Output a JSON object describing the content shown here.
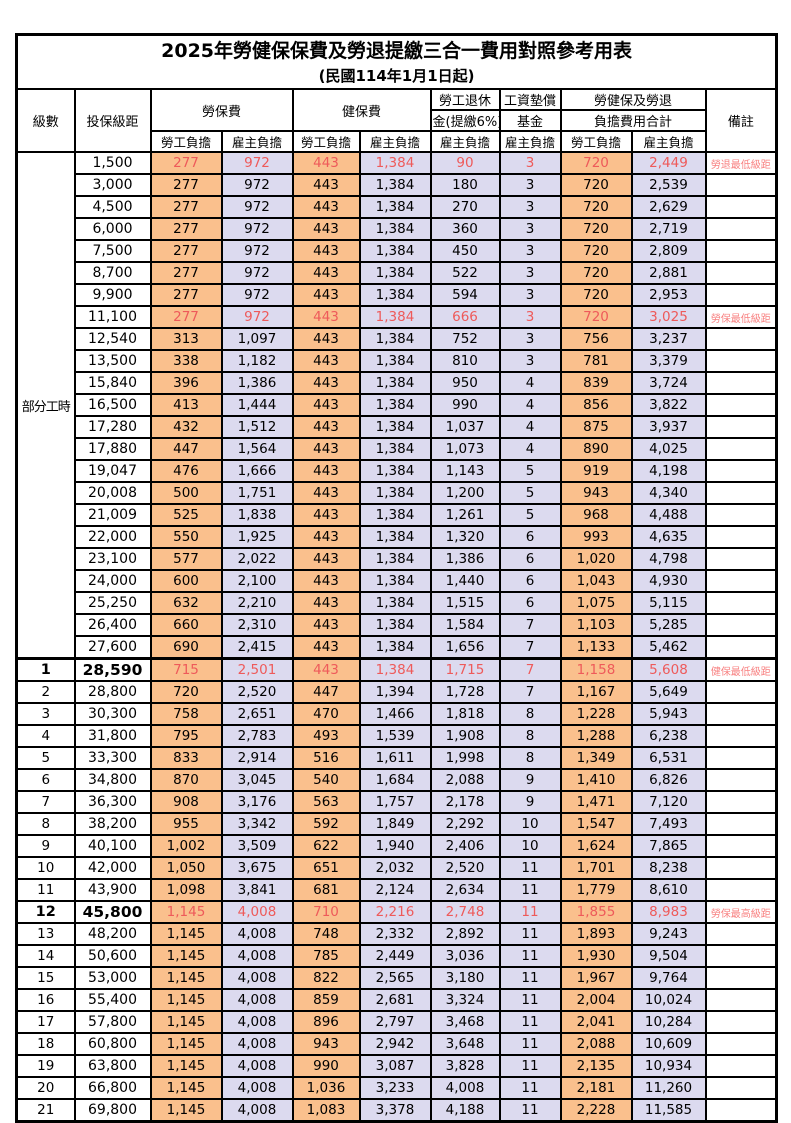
{
  "title": "2025年勞健保保費及勞退提繳三合一費用對照參考用表",
  "subtitle": "(民國114年1月1日起)",
  "columns": {
    "level": "級數",
    "bracket": "投保級距",
    "labor": "勞保費",
    "health": "健保費",
    "pension_1": "勞工退休",
    "pension_2": "金(提繳6%)",
    "wage_fund_1": "工資墊償",
    "wage_fund_2": "基金",
    "total_1": "勞健保及勞退",
    "total_2": "負擔費用合計",
    "note": "備註",
    "employee": "勞工負擔",
    "employer": "雇主負擔"
  },
  "part_time_label": "部分工時",
  "colors": {
    "orange": "#FAC08D",
    "lavender": "#DCDAEF",
    "red": "#EE5A5A",
    "note-red": "#F88080",
    "border": "#000000"
  },
  "rows": [
    {
      "level": "",
      "bracket": "1,500",
      "values": [
        "277",
        "972",
        "443",
        "1,384",
        "90",
        "3",
        "720",
        "2,449"
      ],
      "note": "勞退最低級距",
      "red": true
    },
    {
      "level": "",
      "bracket": "3,000",
      "values": [
        "277",
        "972",
        "443",
        "1,384",
        "180",
        "3",
        "720",
        "2,539"
      ]
    },
    {
      "level": "",
      "bracket": "4,500",
      "values": [
        "277",
        "972",
        "443",
        "1,384",
        "270",
        "3",
        "720",
        "2,629"
      ]
    },
    {
      "level": "",
      "bracket": "6,000",
      "values": [
        "277",
        "972",
        "443",
        "1,384",
        "360",
        "3",
        "720",
        "2,719"
      ]
    },
    {
      "level": "",
      "bracket": "7,500",
      "values": [
        "277",
        "972",
        "443",
        "1,384",
        "450",
        "3",
        "720",
        "2,809"
      ]
    },
    {
      "level": "",
      "bracket": "8,700",
      "values": [
        "277",
        "972",
        "443",
        "1,384",
        "522",
        "3",
        "720",
        "2,881"
      ]
    },
    {
      "level": "",
      "bracket": "9,900",
      "values": [
        "277",
        "972",
        "443",
        "1,384",
        "594",
        "3",
        "720",
        "2,953"
      ]
    },
    {
      "level": "",
      "bracket": "11,100",
      "values": [
        "277",
        "972",
        "443",
        "1,384",
        "666",
        "3",
        "720",
        "3,025"
      ],
      "note": "勞保最低級距",
      "red": true
    },
    {
      "level": "",
      "bracket": "12,540",
      "values": [
        "313",
        "1,097",
        "443",
        "1,384",
        "752",
        "3",
        "756",
        "3,237"
      ]
    },
    {
      "level": "",
      "bracket": "13,500",
      "values": [
        "338",
        "1,182",
        "443",
        "1,384",
        "810",
        "3",
        "781",
        "3,379"
      ]
    },
    {
      "level": "",
      "bracket": "15,840",
      "values": [
        "396",
        "1,386",
        "443",
        "1,384",
        "950",
        "4",
        "839",
        "3,724"
      ]
    },
    {
      "level": "",
      "bracket": "16,500",
      "values": [
        "413",
        "1,444",
        "443",
        "1,384",
        "990",
        "4",
        "856",
        "3,822"
      ]
    },
    {
      "level": "",
      "bracket": "17,280",
      "values": [
        "432",
        "1,512",
        "443",
        "1,384",
        "1,037",
        "4",
        "875",
        "3,937"
      ]
    },
    {
      "level": "",
      "bracket": "17,880",
      "values": [
        "447",
        "1,564",
        "443",
        "1,384",
        "1,073",
        "4",
        "890",
        "4,025"
      ]
    },
    {
      "level": "",
      "bracket": "19,047",
      "values": [
        "476",
        "1,666",
        "443",
        "1,384",
        "1,143",
        "5",
        "919",
        "4,198"
      ]
    },
    {
      "level": "",
      "bracket": "20,008",
      "values": [
        "500",
        "1,751",
        "443",
        "1,384",
        "1,200",
        "5",
        "943",
        "4,340"
      ]
    },
    {
      "level": "",
      "bracket": "21,009",
      "values": [
        "525",
        "1,838",
        "443",
        "1,384",
        "1,261",
        "5",
        "968",
        "4,488"
      ]
    },
    {
      "level": "",
      "bracket": "22,000",
      "values": [
        "550",
        "1,925",
        "443",
        "1,384",
        "1,320",
        "6",
        "993",
        "4,635"
      ]
    },
    {
      "level": "",
      "bracket": "23,100",
      "values": [
        "577",
        "2,022",
        "443",
        "1,384",
        "1,386",
        "6",
        "1,020",
        "4,798"
      ]
    },
    {
      "level": "",
      "bracket": "24,000",
      "values": [
        "600",
        "2,100",
        "443",
        "1,384",
        "1,440",
        "6",
        "1,043",
        "4,930"
      ]
    },
    {
      "level": "",
      "bracket": "25,250",
      "values": [
        "632",
        "2,210",
        "443",
        "1,384",
        "1,515",
        "6",
        "1,075",
        "5,115"
      ]
    },
    {
      "level": "",
      "bracket": "26,400",
      "values": [
        "660",
        "2,310",
        "443",
        "1,384",
        "1,584",
        "7",
        "1,103",
        "5,285"
      ]
    },
    {
      "level": "",
      "bracket": "27,600",
      "values": [
        "690",
        "2,415",
        "443",
        "1,384",
        "1,656",
        "7",
        "1,133",
        "5,462"
      ]
    },
    {
      "level": "1",
      "bracket": "28,590",
      "values": [
        "715",
        "2,501",
        "443",
        "1,384",
        "1,715",
        "7",
        "1,158",
        "5,608"
      ],
      "note": "健保最低級距",
      "red": true,
      "em": true
    },
    {
      "level": "2",
      "bracket": "28,800",
      "values": [
        "720",
        "2,520",
        "447",
        "1,394",
        "1,728",
        "7",
        "1,167",
        "5,649"
      ]
    },
    {
      "level": "3",
      "bracket": "30,300",
      "values": [
        "758",
        "2,651",
        "470",
        "1,466",
        "1,818",
        "8",
        "1,228",
        "5,943"
      ]
    },
    {
      "level": "4",
      "bracket": "31,800",
      "values": [
        "795",
        "2,783",
        "493",
        "1,539",
        "1,908",
        "8",
        "1,288",
        "6,238"
      ]
    },
    {
      "level": "5",
      "bracket": "33,300",
      "values": [
        "833",
        "2,914",
        "516",
        "1,611",
        "1,998",
        "8",
        "1,349",
        "6,531"
      ]
    },
    {
      "level": "6",
      "bracket": "34,800",
      "values": [
        "870",
        "3,045",
        "540",
        "1,684",
        "2,088",
        "9",
        "1,410",
        "6,826"
      ]
    },
    {
      "level": "7",
      "bracket": "36,300",
      "values": [
        "908",
        "3,176",
        "563",
        "1,757",
        "2,178",
        "9",
        "1,471",
        "7,120"
      ]
    },
    {
      "level": "8",
      "bracket": "38,200",
      "values": [
        "955",
        "3,342",
        "592",
        "1,849",
        "2,292",
        "10",
        "1,547",
        "7,493"
      ]
    },
    {
      "level": "9",
      "bracket": "40,100",
      "values": [
        "1,002",
        "3,509",
        "622",
        "1,940",
        "2,406",
        "10",
        "1,624",
        "7,865"
      ]
    },
    {
      "level": "10",
      "bracket": "42,000",
      "values": [
        "1,050",
        "3,675",
        "651",
        "2,032",
        "2,520",
        "11",
        "1,701",
        "8,238"
      ]
    },
    {
      "level": "11",
      "bracket": "43,900",
      "values": [
        "1,098",
        "3,841",
        "681",
        "2,124",
        "2,634",
        "11",
        "1,779",
        "8,610"
      ]
    },
    {
      "level": "12",
      "bracket": "45,800",
      "values": [
        "1,145",
        "4,008",
        "710",
        "2,216",
        "2,748",
        "11",
        "1,855",
        "8,983"
      ],
      "note": "勞保最高級距",
      "red": true,
      "em": true
    },
    {
      "level": "13",
      "bracket": "48,200",
      "values": [
        "1,145",
        "4,008",
        "748",
        "2,332",
        "2,892",
        "11",
        "1,893",
        "9,243"
      ]
    },
    {
      "level": "14",
      "bracket": "50,600",
      "values": [
        "1,145",
        "4,008",
        "785",
        "2,449",
        "3,036",
        "11",
        "1,930",
        "9,504"
      ]
    },
    {
      "level": "15",
      "bracket": "53,000",
      "values": [
        "1,145",
        "4,008",
        "822",
        "2,565",
        "3,180",
        "11",
        "1,967",
        "9,764"
      ]
    },
    {
      "level": "16",
      "bracket": "55,400",
      "values": [
        "1,145",
        "4,008",
        "859",
        "2,681",
        "3,324",
        "11",
        "2,004",
        "10,024"
      ]
    },
    {
      "level": "17",
      "bracket": "57,800",
      "values": [
        "1,145",
        "4,008",
        "896",
        "2,797",
        "3,468",
        "11",
        "2,041",
        "10,284"
      ]
    },
    {
      "level": "18",
      "bracket": "60,800",
      "values": [
        "1,145",
        "4,008",
        "943",
        "2,942",
        "3,648",
        "11",
        "2,088",
        "10,609"
      ]
    },
    {
      "level": "19",
      "bracket": "63,800",
      "values": [
        "1,145",
        "4,008",
        "990",
        "3,087",
        "3,828",
        "11",
        "2,135",
        "10,934"
      ]
    },
    {
      "level": "20",
      "bracket": "66,800",
      "values": [
        "1,145",
        "4,008",
        "1,036",
        "3,233",
        "4,008",
        "11",
        "2,181",
        "11,260"
      ]
    },
    {
      "level": "21",
      "bracket": "69,800",
      "values": [
        "1,145",
        "4,008",
        "1,083",
        "3,378",
        "4,188",
        "11",
        "2,228",
        "11,585"
      ]
    }
  ]
}
